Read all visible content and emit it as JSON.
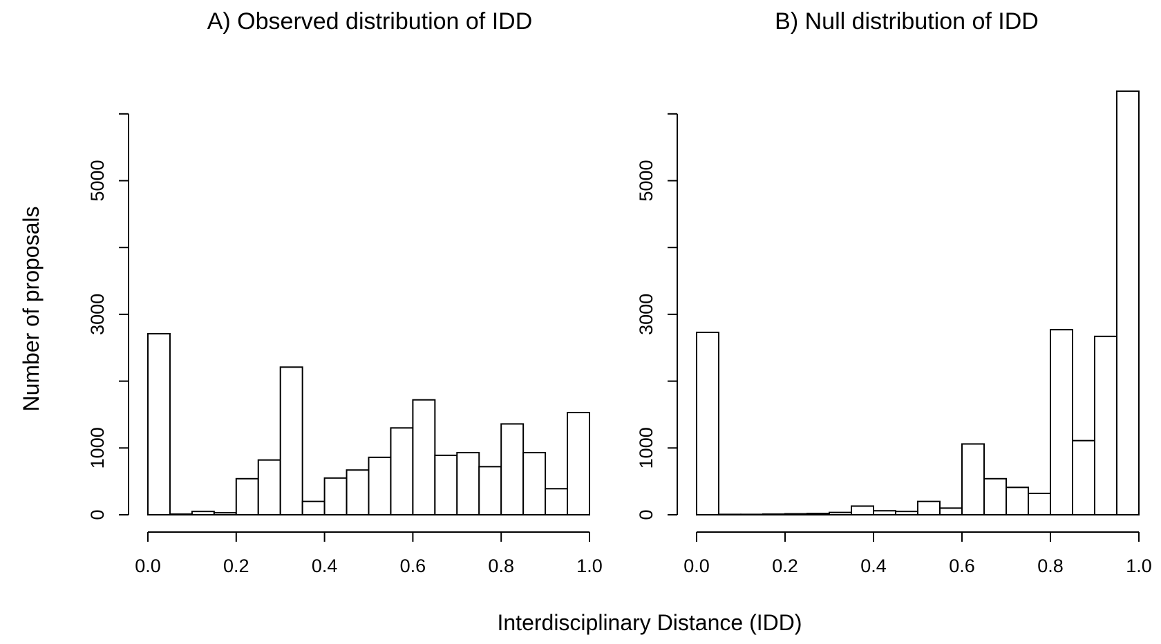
{
  "figure": {
    "shared_xlabel": "Interdisciplinary Distance (IDD)",
    "shared_ylabel": "Number of proposals"
  },
  "chart_data": [
    {
      "type": "bar",
      "title": "A) Observed distribution of IDD",
      "xlabel": "Interdisciplinary Distance (IDD)",
      "ylabel": "Number of proposals",
      "bin_edges": [
        0.0,
        0.05,
        0.1,
        0.15,
        0.2,
        0.25,
        0.3,
        0.35,
        0.4,
        0.45,
        0.5,
        0.55,
        0.6,
        0.65,
        0.7,
        0.75,
        0.8,
        0.85,
        0.9,
        0.95,
        1.0
      ],
      "values": [
        2710,
        10,
        50,
        30,
        540,
        820,
        2210,
        200,
        550,
        670,
        860,
        1300,
        1720,
        890,
        930,
        720,
        1360,
        930,
        390,
        1530
      ],
      "xlim": [
        0,
        1
      ],
      "ylim": [
        0,
        6000
      ],
      "xticks": [
        "0.0",
        "0.2",
        "0.4",
        "0.6",
        "0.8",
        "1.0"
      ],
      "xtick_values": [
        0,
        0.2,
        0.4,
        0.6,
        0.8,
        1.0
      ],
      "yticks": [
        "0",
        "1000",
        "3000",
        "5000"
      ],
      "ytick_values": [
        0,
        1000,
        3000,
        5000
      ],
      "yminor_ticks": [
        2000,
        4000,
        6000
      ]
    },
    {
      "type": "bar",
      "title": "B) Null distribution of IDD",
      "xlabel": "Interdisciplinary Distance (IDD)",
      "ylabel": "Number of proposals",
      "bin_edges": [
        0.0,
        0.05,
        0.1,
        0.15,
        0.2,
        0.25,
        0.3,
        0.35,
        0.4,
        0.45,
        0.5,
        0.55,
        0.6,
        0.65,
        0.7,
        0.75,
        0.8,
        0.85,
        0.9,
        0.95,
        1.0
      ],
      "values": [
        2730,
        5,
        5,
        10,
        15,
        20,
        35,
        130,
        60,
        50,
        200,
        100,
        1060,
        540,
        410,
        320,
        2770,
        1110,
        2670,
        6340
      ],
      "xlim": [
        0,
        1
      ],
      "ylim": [
        0,
        6000
      ],
      "xticks": [
        "0.0",
        "0.2",
        "0.4",
        "0.6",
        "0.8",
        "1.0"
      ],
      "xtick_values": [
        0,
        0.2,
        0.4,
        0.6,
        0.8,
        1.0
      ],
      "yticks": [
        "0",
        "1000",
        "3000",
        "5000"
      ],
      "ytick_values": [
        0,
        1000,
        3000,
        5000
      ],
      "yminor_ticks": [
        2000,
        4000,
        6000
      ]
    }
  ]
}
